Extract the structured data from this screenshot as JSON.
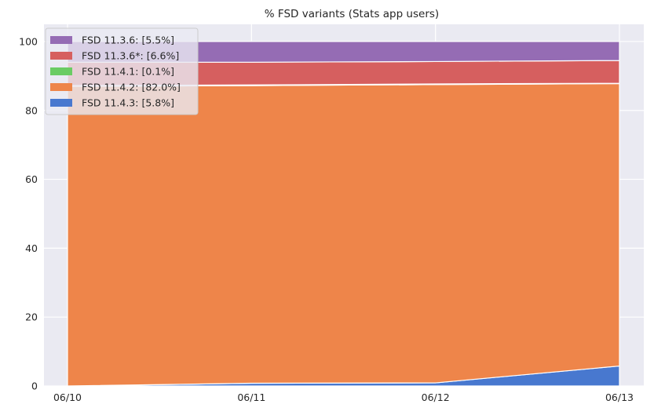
{
  "colors": {
    "plot_background": "#eaeaf2",
    "grid": "#ffffff",
    "figure_background": "#ffffff"
  },
  "chart_data": {
    "type": "area",
    "stacked": true,
    "title": "% FSD variants (Stats app users)",
    "xlabel": "",
    "ylabel": "",
    "x": [
      "06/10",
      "06/11",
      "06/12",
      "06/13"
    ],
    "ylim": [
      0,
      105
    ],
    "yticks": [
      0,
      20,
      40,
      60,
      80,
      100
    ],
    "grid": true,
    "legend_position": "top-left",
    "series": [
      {
        "name": "FSD 11.4.3:  [5.8%]",
        "color": "#4878cf",
        "values": [
          0.0,
          0.8,
          0.9,
          5.8
        ]
      },
      {
        "name": "FSD 11.4.2:  [82.0%]",
        "color": "#ee854a",
        "values": [
          87.0,
          86.4,
          86.6,
          82.0
        ]
      },
      {
        "name": "FSD 11.4.1:  [0.1%]",
        "color": "#6acc64",
        "values": [
          0.2,
          0.2,
          0.2,
          0.1
        ]
      },
      {
        "name": "FSD 11.3.6*:  [6.6%]",
        "color": "#d65f5f",
        "values": [
          6.8,
          6.6,
          6.5,
          6.6
        ]
      },
      {
        "name": "FSD 11.3.6:  [5.5%]",
        "color": "#956cb4",
        "values": [
          6.0,
          6.0,
          5.8,
          5.5
        ]
      }
    ],
    "legend_order": [
      "FSD 11.3.6:  [5.5%]",
      "FSD 11.3.6*:  [6.6%]",
      "FSD 11.4.1:  [0.1%]",
      "FSD 11.4.2:  [82.0%]",
      "FSD 11.4.3:  [5.8%]"
    ]
  }
}
